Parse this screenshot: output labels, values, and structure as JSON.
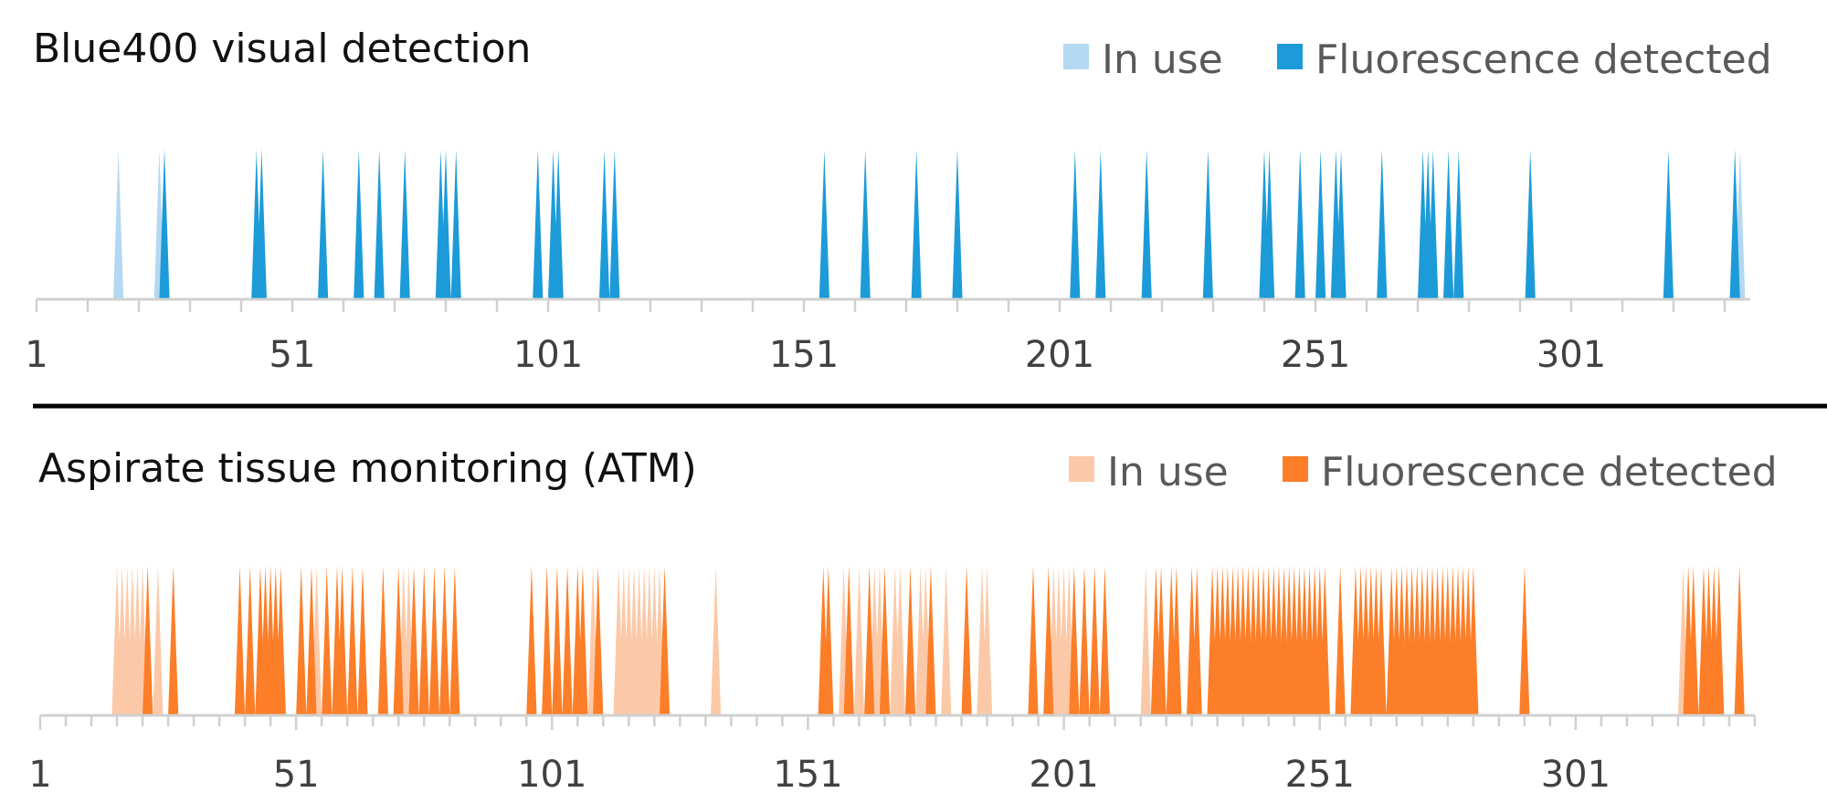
{
  "chart_data": [
    {
      "type": "area",
      "title": "Blue400 visual detection",
      "x_tick_labels": [
        "1",
        "51",
        "101",
        "151",
        "201",
        "251",
        "301"
      ],
      "xlim": [
        1,
        336
      ],
      "legend_placement": "top-right",
      "series": [
        {
          "name": "In use",
          "color": "#b4d8f1",
          "x": [
            17,
            25,
            26,
            333,
            334
          ]
        },
        {
          "name": "Fluorescence detected",
          "color": "#1c9bd8",
          "x": [
            26,
            44,
            45,
            57,
            64,
            68,
            73,
            80,
            81,
            83,
            99,
            102,
            103,
            112,
            114,
            155,
            163,
            173,
            181,
            204,
            209,
            218,
            230,
            241,
            242,
            248,
            252,
            255,
            256,
            264,
            272,
            273,
            274,
            277,
            279,
            293,
            320,
            333
          ]
        }
      ]
    },
    {
      "type": "area",
      "title": "Aspirate tissue monitoring (ATM)",
      "x_tick_labels": [
        "1",
        "51",
        "101",
        "151",
        "201",
        "251",
        "301"
      ],
      "xlim": [
        1,
        336
      ],
      "legend_placement": "top-right",
      "series": [
        {
          "name": "In use",
          "color": "#fcc9a8",
          "x": [
            16,
            17,
            18,
            19,
            20,
            21,
            22,
            24,
            55,
            72,
            73,
            109,
            114,
            115,
            116,
            117,
            118,
            119,
            120,
            121,
            122,
            133,
            158,
            159,
            161,
            164,
            165,
            168,
            169,
            173,
            174,
            178,
            185,
            186,
            199,
            200,
            201,
            202,
            217,
            322,
            323
          ]
        },
        {
          "name": "Fluorescence detected",
          "color": "#fd7e28",
          "x": [
            22,
            27,
            40,
            42,
            44,
            45,
            46,
            47,
            48,
            52,
            54,
            57,
            59,
            60,
            62,
            64,
            68,
            71,
            74,
            76,
            78,
            80,
            82,
            97,
            100,
            102,
            104,
            106,
            107,
            110,
            123,
            154,
            155,
            159,
            163,
            166,
            171,
            175,
            182,
            195,
            198,
            203,
            205,
            207,
            209,
            219,
            220,
            222,
            223,
            226,
            227,
            230,
            231,
            232,
            233,
            234,
            235,
            236,
            237,
            238,
            239,
            240,
            241,
            242,
            243,
            244,
            245,
            246,
            247,
            248,
            249,
            250,
            251,
            252,
            255,
            258,
            259,
            260,
            261,
            262,
            263,
            265,
            266,
            267,
            268,
            269,
            270,
            271,
            272,
            273,
            274,
            275,
            276,
            277,
            278,
            279,
            280,
            281,
            291,
            323,
            324,
            326,
            327,
            328,
            329,
            333
          ]
        }
      ]
    }
  ]
}
